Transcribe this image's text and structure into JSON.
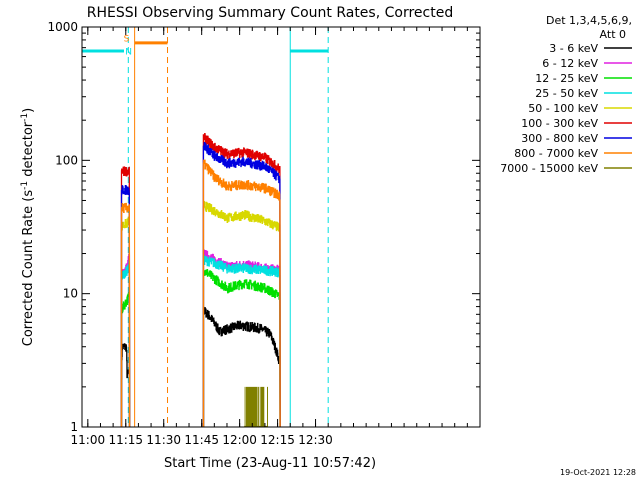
{
  "chart_data": {
    "type": "line",
    "title": "RHESSI Observing Summary Count Rates, Corrected",
    "xlabel": "Start Time (23-Aug-11 10:57:42)",
    "ylabel_main": "Corrected Count Rate (s",
    "ylabel_sup1": "-1",
    "ylabel_mid": " detector",
    "ylabel_sup2": "-1",
    "ylabel_end": ")",
    "yscale": "log",
    "ylim": [
      1,
      1000
    ],
    "xlim_min": [
      657.7,
      815
    ],
    "y_ticks": [
      {
        "v": 1,
        "label": "1"
      },
      {
        "v": 10,
        "label": "10"
      },
      {
        "v": 100,
        "label": "100"
      },
      {
        "v": 1000,
        "label": "1000"
      }
    ],
    "x_ticks": [
      {
        "t": 660,
        "label": "11:00"
      },
      {
        "t": 675,
        "label": "11:15"
      },
      {
        "t": 690,
        "label": "11:30"
      },
      {
        "t": 705,
        "label": "11:45"
      },
      {
        "t": 720,
        "label": "12:00"
      },
      {
        "t": 735,
        "label": "12:15"
      },
      {
        "t": 750,
        "label": "12:30"
      }
    ],
    "legend_header": [
      "Det 1,3,4,5,6,9,",
      "Att 0"
    ],
    "legend_position": "right",
    "timestamp": "19-Oct-2021 12:28",
    "series": [
      {
        "name": "3 - 6 keV",
        "color": "#000000"
      },
      {
        "name": "6 - 12 keV",
        "color": "#e020e0"
      },
      {
        "name": "12 - 25 keV",
        "color": "#00e000"
      },
      {
        "name": "25 - 50 keV",
        "color": "#00e0e0"
      },
      {
        "name": "50 - 100 keV",
        "color": "#d8d800"
      },
      {
        "name": "100 - 300 keV",
        "color": "#e00000"
      },
      {
        "name": "300 - 800 keV",
        "color": "#0000e0"
      },
      {
        "name": "800 - 7000 keV",
        "color": "#ff8000"
      },
      {
        "name": "7000 - 15000 keV",
        "color": "#808000"
      }
    ],
    "segments": [
      [
        673.3,
        678.5
      ],
      [
        705.7,
        736.0
      ]
    ],
    "series_levels": [
      {
        "color": "#000000",
        "seg1": [
          [
            673.3,
            2.5
          ],
          [
            673.6,
            4.0
          ],
          [
            675.2,
            4.0
          ],
          [
            675.5,
            2.5
          ]
        ],
        "seg2": [
          [
            705.7,
            7.5
          ],
          [
            708.0,
            6.8
          ],
          [
            712.0,
            5.2
          ],
          [
            720.0,
            5.8
          ],
          [
            728.0,
            5.5
          ],
          [
            732.0,
            5.0
          ],
          [
            735.5,
            3.2
          ]
        ]
      },
      {
        "color": "#e020e0",
        "seg1": [
          [
            673.3,
            14.0
          ],
          [
            675.6,
            16.0
          ],
          [
            676.5,
            20.0
          ]
        ],
        "seg2": [
          [
            705.7,
            20.0
          ],
          [
            710.0,
            18.0
          ],
          [
            715.0,
            16.0
          ],
          [
            722.0,
            16.5
          ],
          [
            730.0,
            15.5
          ],
          [
            736.0,
            15.0
          ]
        ]
      },
      {
        "color": "#00e000",
        "seg1": [
          [
            673.3,
            7.5
          ],
          [
            675.6,
            9.0
          ],
          [
            676.5,
            10.0
          ]
        ],
        "seg2": [
          [
            705.7,
            15.0
          ],
          [
            710.0,
            13.0
          ],
          [
            715.0,
            11.0
          ],
          [
            722.0,
            12.0
          ],
          [
            730.0,
            11.0
          ],
          [
            736.0,
            9.5
          ]
        ]
      },
      {
        "color": "#00e0e0",
        "seg1": [
          [
            673.3,
            13.5
          ],
          [
            675.6,
            15.0
          ],
          [
            676.5,
            17.0
          ]
        ],
        "seg2": [
          [
            705.7,
            18.0
          ],
          [
            710.0,
            17.0
          ],
          [
            715.0,
            15.5
          ],
          [
            722.0,
            15.5
          ],
          [
            730.0,
            15.0
          ],
          [
            736.0,
            14.5
          ]
        ]
      },
      {
        "color": "#d8d800",
        "seg1": [
          [
            673.3,
            32.0
          ],
          [
            675.6,
            34.0
          ],
          [
            676.5,
            36.0
          ]
        ],
        "seg2": [
          [
            705.7,
            46.0
          ],
          [
            710.0,
            42.0
          ],
          [
            715.0,
            37.0
          ],
          [
            722.0,
            39.0
          ],
          [
            730.0,
            35.0
          ],
          [
            736.0,
            31.0
          ]
        ]
      },
      {
        "color": "#e00000",
        "seg1": [
          [
            673.3,
            83.0
          ],
          [
            676.5,
            83.0
          ]
        ],
        "seg2": [
          [
            705.7,
            150.0
          ],
          [
            710.0,
            125.0
          ],
          [
            715.0,
            112.0
          ],
          [
            722.0,
            115.0
          ],
          [
            730.0,
            105.0
          ],
          [
            736.0,
            85.0
          ]
        ]
      },
      {
        "color": "#0000e0",
        "seg1": [
          [
            673.3,
            60.0
          ],
          [
            676.5,
            60.0
          ]
        ],
        "seg2": [
          [
            705.7,
            130.0
          ],
          [
            710.0,
            108.0
          ],
          [
            715.0,
            95.0
          ],
          [
            722.0,
            98.0
          ],
          [
            730.0,
            90.0
          ],
          [
            736.0,
            72.0
          ]
        ]
      },
      {
        "color": "#ff8000",
        "seg1": [
          [
            673.3,
            44.0
          ],
          [
            676.5,
            44.0
          ]
        ],
        "seg2": [
          [
            705.7,
            95.0
          ],
          [
            710.0,
            75.0
          ],
          [
            715.0,
            64.0
          ],
          [
            722.0,
            66.0
          ],
          [
            730.0,
            62.0
          ],
          [
            736.0,
            54.0
          ]
        ]
      }
    ],
    "high_energy_burst": {
      "color": "#808000",
      "x_range": [
        722.0,
        731.0
      ],
      "y_range": [
        1.0,
        2.0
      ]
    },
    "flag_lines": [
      {
        "color": "#00e0e0",
        "y": 660,
        "x_range": [
          657.7,
          674.3
        ]
      },
      {
        "color": "#ff8000",
        "y": 760,
        "x_range": [
          678.5,
          691.5
        ]
      },
      {
        "color": "#00e0e0",
        "y": 660,
        "x_range": [
          740.0,
          755.0
        ]
      }
    ],
    "flag_markers": [
      {
        "label": "S",
        "color": "#ff8000",
        "t": 675.3,
        "y": 780
      },
      {
        "label": "N",
        "color": "#00e0e0",
        "t": 676.1,
        "y": 620
      }
    ],
    "vertical_markers": [
      {
        "color": "#00e0e0",
        "t": 657.7,
        "style": "solid"
      },
      {
        "color": "#00e0e0",
        "t": 676.0,
        "style": "dashed"
      },
      {
        "color": "#ff8000",
        "t": 678.5,
        "style": "solid"
      },
      {
        "color": "#ff8000",
        "t": 691.5,
        "style": "dashed"
      },
      {
        "color": "#00e0e0",
        "t": 740.0,
        "style": "solid"
      },
      {
        "color": "#00e0e0",
        "t": 755.0,
        "style": "dashed"
      }
    ]
  }
}
